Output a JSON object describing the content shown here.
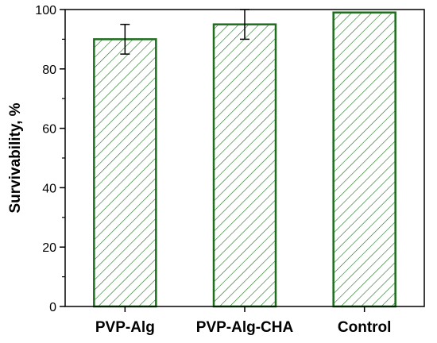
{
  "chart_data": {
    "type": "bar",
    "categories": [
      "PVP-Alg",
      "PVP-Alg-CHA",
      "Control"
    ],
    "values": [
      90,
      95,
      99
    ],
    "errors": [
      5,
      5,
      0
    ],
    "xlabel": "",
    "ylabel": "Survivability, %",
    "ylim": [
      0,
      100
    ],
    "yticks": [
      0,
      20,
      40,
      60,
      80,
      100
    ],
    "grid": false,
    "bar_fill": "hatched",
    "bar_color": "#1d6f1d"
  }
}
